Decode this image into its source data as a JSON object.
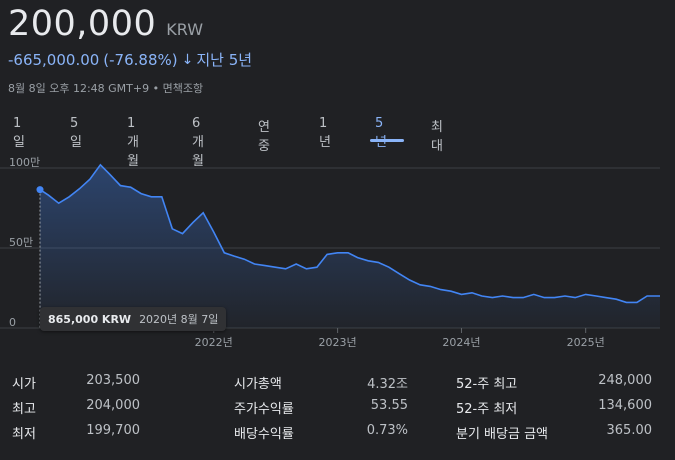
{
  "price": "200,000",
  "currency": "KRW",
  "change": {
    "amount": "-665,000.00",
    "percent": "(-76.88%)",
    "arrow": "↓",
    "period": "지난 5년"
  },
  "date_line": "8월 8일 오후 12:48 GMT+9 • 면책조항",
  "tabs": [
    "1일",
    "5일",
    "1개월",
    "6개월",
    "연중",
    "1년",
    "5년",
    "최대"
  ],
  "active_tab": "5년",
  "tooltip": {
    "value": "865,000 KRW",
    "date": "2020년 8월 7일"
  },
  "accent_color": "#8ab4f8",
  "line_color": "#4285f4",
  "chart_data": {
    "type": "area",
    "title": "",
    "xlabel": "",
    "ylabel": "",
    "y_tick_labels": [
      "100만",
      "50만",
      "0"
    ],
    "y_ticks": [
      1000000,
      500000,
      0
    ],
    "ylim": [
      0,
      1100000
    ],
    "x_tick_labels": [
      "2022년",
      "2023년",
      "2024년",
      "2025년"
    ],
    "x_ticks": [
      "2022-01-01",
      "2023-01-01",
      "2024-01-01",
      "2025-01-01"
    ],
    "xlim": [
      "2020-08-07",
      "2025-08-08"
    ],
    "grid": true,
    "series": [
      {
        "x": [
          "2020-08-07",
          "2020-09-01",
          "2020-10-01",
          "2020-11-01",
          "2020-12-01",
          "2021-01-01",
          "2021-02-01",
          "2021-03-01",
          "2021-04-01",
          "2021-05-01",
          "2021-06-01",
          "2021-07-01",
          "2021-08-01",
          "2021-09-01",
          "2021-10-01",
          "2021-11-01",
          "2021-12-01",
          "2022-01-01",
          "2022-02-01",
          "2022-03-01",
          "2022-04-01",
          "2022-05-01",
          "2022-06-01",
          "2022-07-01",
          "2022-08-01",
          "2022-09-01",
          "2022-10-01",
          "2022-11-01",
          "2022-12-01",
          "2023-01-01",
          "2023-02-01",
          "2023-03-01",
          "2023-04-01",
          "2023-05-01",
          "2023-06-01",
          "2023-07-01",
          "2023-08-01",
          "2023-09-01",
          "2023-10-01",
          "2023-11-01",
          "2023-12-01",
          "2024-01-01",
          "2024-02-01",
          "2024-03-01",
          "2024-04-01",
          "2024-05-01",
          "2024-06-01",
          "2024-07-01",
          "2024-08-01",
          "2024-09-01",
          "2024-10-01",
          "2024-11-01",
          "2024-12-01",
          "2025-01-01",
          "2025-02-01",
          "2025-03-01",
          "2025-04-01",
          "2025-05-01",
          "2025-06-01",
          "2025-07-01",
          "2025-08-08"
        ],
        "values": [
          865000,
          830000,
          780000,
          820000,
          870000,
          930000,
          1020000,
          960000,
          890000,
          880000,
          840000,
          820000,
          820000,
          620000,
          590000,
          660000,
          720000,
          600000,
          470000,
          450000,
          430000,
          400000,
          390000,
          380000,
          370000,
          400000,
          370000,
          380000,
          460000,
          470000,
          470000,
          440000,
          420000,
          410000,
          380000,
          340000,
          300000,
          270000,
          260000,
          240000,
          230000,
          210000,
          220000,
          200000,
          190000,
          200000,
          190000,
          190000,
          210000,
          190000,
          190000,
          200000,
          190000,
          210000,
          200000,
          190000,
          180000,
          160000,
          160000,
          200000,
          200000
        ]
      }
    ]
  },
  "stats": [
    {
      "label": "시가",
      "value": "203,500"
    },
    {
      "label": "최고",
      "value": "204,000"
    },
    {
      "label": "최저",
      "value": "199,700"
    },
    {
      "label": "시가총액",
      "value": "4.32조"
    },
    {
      "label": "주가수익률",
      "value": "53.55"
    },
    {
      "label": "배당수익률",
      "value": "0.73%"
    },
    {
      "label": "52-주 최고",
      "value": "248,000"
    },
    {
      "label": "52-주 최저",
      "value": "134,600"
    },
    {
      "label": "분기 배당금 금액",
      "value": "365.00"
    }
  ]
}
